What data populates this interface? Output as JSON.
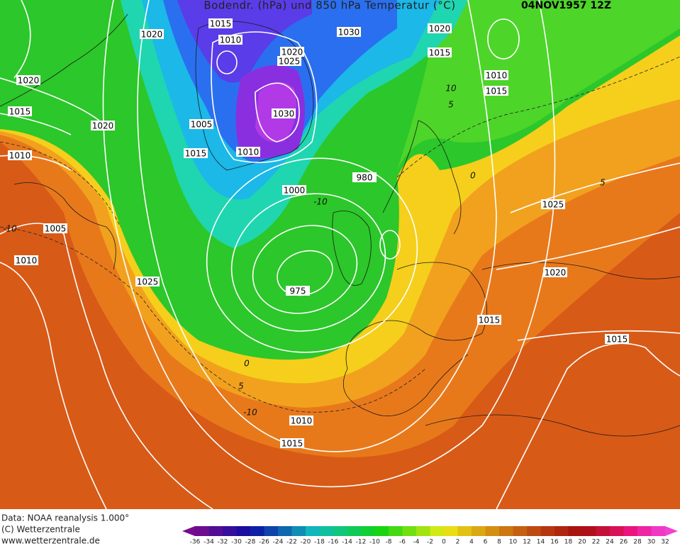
{
  "header": {
    "title": "Bodendr. (hPa) und 850 hPa Temperatur (°C)",
    "datetime": "04NOV1957 12Z"
  },
  "footer": {
    "lines": [
      "Data: NOAA reanalysis 1.000°",
      "(C) Wetterzentrale",
      "www.wetterzentrale.de"
    ]
  },
  "colorbar": {
    "ticks": [
      -36,
      -34,
      -32,
      -30,
      -28,
      -26,
      -24,
      -22,
      -20,
      -18,
      -16,
      -14,
      -12,
      -10,
      -8,
      -6,
      -4,
      -2,
      0,
      2,
      4,
      6,
      8,
      10,
      12,
      14,
      16,
      18,
      20,
      22,
      24,
      26,
      28,
      30,
      32
    ]
  },
  "isobar_labels": [
    1015,
    1020,
    1010,
    1030,
    1020,
    1015,
    1020,
    1025,
    1020,
    1010,
    1015,
    1015,
    1030,
    1020,
    1005,
    1015,
    1010,
    1010,
    980,
    1000,
    1025,
    1005,
    1010,
    1020,
    1025,
    975,
    1015,
    1015,
    1010,
    1015
  ],
  "isotherm_labels": [
    10,
    5,
    -10,
    -10,
    0,
    5,
    0,
    5,
    -10
  ]
}
